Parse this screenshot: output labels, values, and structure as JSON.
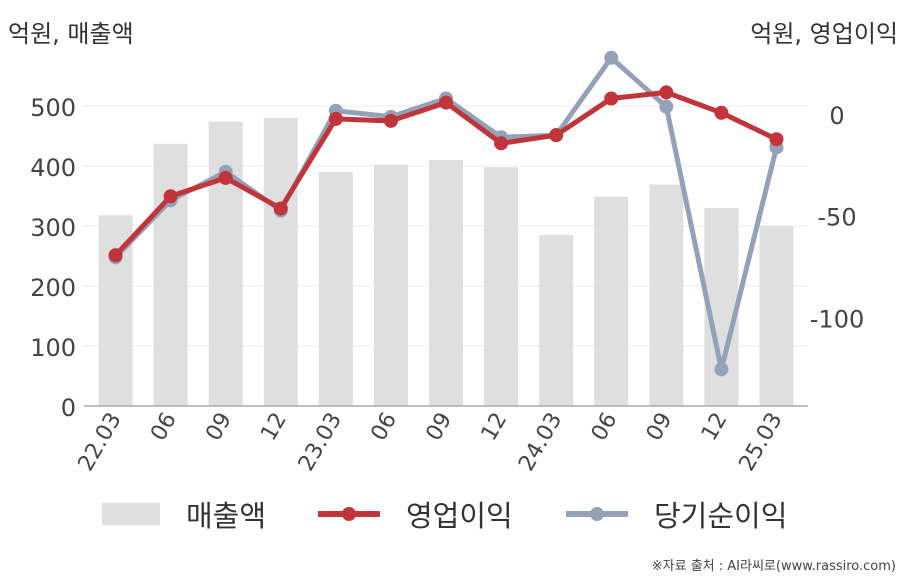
{
  "units": {
    "left": "억원, 매출액",
    "right": "억원, 영업이익"
  },
  "source": "※자료 출처 : AI라씨로(www.rassiro.com)",
  "colors": {
    "bars": "#dfdfdf",
    "operating_profit": "#c0343a",
    "net_income": "#95a0b9",
    "grid": "#ececec",
    "axis": "#aaaaaa"
  },
  "chart_data": {
    "type": "bar+line",
    "categories": [
      "22.03",
      "06",
      "09",
      "12",
      "23.03",
      "06",
      "09",
      "12",
      "24.03",
      "06",
      "09",
      "12",
      "25.03"
    ],
    "left_axis": {
      "ticks": [
        0,
        100,
        200,
        300,
        400,
        500
      ],
      "range": [
        0,
        560
      ]
    },
    "right_axis": {
      "ticks": [
        0,
        -50,
        -100
      ],
      "range": [
        -143,
        22
      ]
    },
    "grid": true,
    "legend_position": "bottom",
    "series": [
      {
        "name": "매출액",
        "kind": "bar",
        "axis": "left",
        "values": [
          318,
          437,
          474,
          480,
          390,
          402,
          410,
          398,
          285,
          349,
          369,
          330,
          300
        ]
      },
      {
        "name": "영업이익",
        "kind": "line",
        "axis": "right",
        "values": [
          -69,
          -40,
          -31,
          -46,
          -2,
          -3,
          6,
          -14,
          -10,
          8,
          11,
          1,
          -12
        ]
      },
      {
        "name": "당기순이익",
        "kind": "line",
        "axis": "right",
        "values": [
          -70,
          -42,
          -28,
          -47,
          2,
          -1,
          8,
          -11,
          -10,
          28,
          4,
          -125,
          -16
        ]
      }
    ]
  }
}
